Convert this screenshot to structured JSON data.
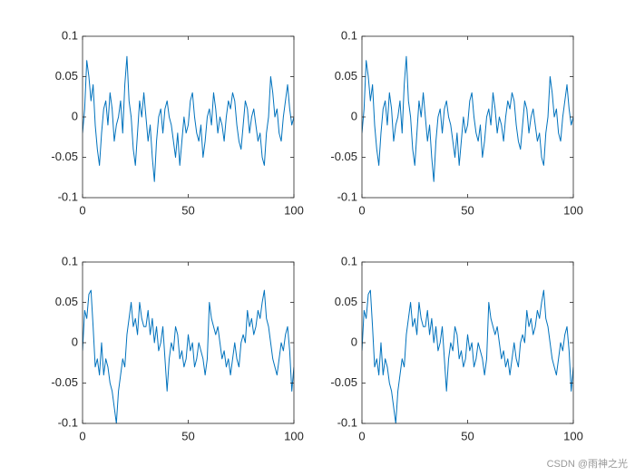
{
  "chart_data": [
    {
      "type": "line",
      "color": "#0072BD",
      "x": [
        0,
        1,
        2,
        3,
        4,
        5,
        6,
        7,
        8,
        9,
        10,
        11,
        12,
        13,
        14,
        15,
        16,
        17,
        18,
        19,
        20,
        21,
        22,
        23,
        24,
        25,
        26,
        27,
        28,
        29,
        30,
        31,
        32,
        33,
        34,
        35,
        36,
        37,
        38,
        39,
        40,
        41,
        42,
        43,
        44,
        45,
        46,
        47,
        48,
        49,
        50,
        51,
        52,
        53,
        54,
        55,
        56,
        57,
        58,
        59,
        60,
        61,
        62,
        63,
        64,
        65,
        66,
        67,
        68,
        69,
        70,
        71,
        72,
        73,
        74,
        75,
        76,
        77,
        78,
        79,
        80,
        81,
        82,
        83,
        84,
        85,
        86,
        87,
        88,
        89,
        90,
        91,
        92,
        93,
        94,
        95,
        96,
        97,
        98,
        99,
        100
      ],
      "values": [
        -0.02,
        0.01,
        0.07,
        0.05,
        0.02,
        0.04,
        -0.01,
        -0.04,
        -0.06,
        -0.02,
        0.01,
        0.02,
        -0.01,
        0.03,
        0.01,
        -0.03,
        -0.01,
        0.0,
        0.02,
        -0.02,
        0.04,
        0.075,
        0.02,
        0.0,
        -0.04,
        -0.06,
        -0.02,
        0.02,
        0.0,
        0.03,
        0.0,
        -0.03,
        -0.01,
        -0.05,
        -0.08,
        -0.03,
        0.0,
        0.01,
        -0.02,
        0.01,
        0.02,
        0.0,
        -0.01,
        -0.03,
        -0.05,
        -0.02,
        -0.06,
        -0.03,
        0.0,
        -0.02,
        -0.01,
        0.02,
        0.03,
        0.0,
        -0.02,
        -0.03,
        -0.01,
        -0.05,
        -0.03,
        0.0,
        0.01,
        -0.01,
        0.03,
        0.01,
        -0.02,
        0.0,
        -0.01,
        -0.03,
        0.0,
        0.02,
        0.01,
        0.03,
        0.02,
        -0.01,
        -0.03,
        -0.04,
        -0.01,
        0.02,
        0.01,
        -0.02,
        0.0,
        0.01,
        -0.01,
        -0.03,
        -0.02,
        -0.05,
        -0.06,
        -0.02,
        0.0,
        0.05,
        0.03,
        0.0,
        0.01,
        -0.02,
        -0.03,
        0.0,
        0.02,
        0.04,
        0.01,
        -0.01,
        0.0
      ],
      "xlim": [
        0,
        100
      ],
      "xticks": [
        0,
        50,
        100
      ],
      "ylim": [
        -0.1,
        0.1
      ],
      "yticks": [
        -0.1,
        -0.05,
        0,
        0.05,
        0.1
      ]
    },
    {
      "type": "line",
      "color": "#0072BD",
      "x": [
        0,
        1,
        2,
        3,
        4,
        5,
        6,
        7,
        8,
        9,
        10,
        11,
        12,
        13,
        14,
        15,
        16,
        17,
        18,
        19,
        20,
        21,
        22,
        23,
        24,
        25,
        26,
        27,
        28,
        29,
        30,
        31,
        32,
        33,
        34,
        35,
        36,
        37,
        38,
        39,
        40,
        41,
        42,
        43,
        44,
        45,
        46,
        47,
        48,
        49,
        50,
        51,
        52,
        53,
        54,
        55,
        56,
        57,
        58,
        59,
        60,
        61,
        62,
        63,
        64,
        65,
        66,
        67,
        68,
        69,
        70,
        71,
        72,
        73,
        74,
        75,
        76,
        77,
        78,
        79,
        80,
        81,
        82,
        83,
        84,
        85,
        86,
        87,
        88,
        89,
        90,
        91,
        92,
        93,
        94,
        95,
        96,
        97,
        98,
        99,
        100
      ],
      "values": [
        -0.02,
        0.01,
        0.07,
        0.05,
        0.02,
        0.04,
        -0.01,
        -0.04,
        -0.06,
        -0.02,
        0.01,
        0.02,
        -0.01,
        0.03,
        0.01,
        -0.03,
        -0.01,
        0.0,
        0.02,
        -0.02,
        0.04,
        0.075,
        0.02,
        0.0,
        -0.04,
        -0.06,
        -0.02,
        0.02,
        0.0,
        0.03,
        0.0,
        -0.03,
        -0.01,
        -0.05,
        -0.08,
        -0.03,
        0.0,
        0.01,
        -0.02,
        0.01,
        0.02,
        0.0,
        -0.01,
        -0.03,
        -0.05,
        -0.02,
        -0.06,
        -0.03,
        0.0,
        -0.02,
        -0.01,
        0.02,
        0.03,
        0.0,
        -0.02,
        -0.03,
        -0.01,
        -0.05,
        -0.03,
        0.0,
        0.01,
        -0.01,
        0.03,
        0.01,
        -0.02,
        0.0,
        -0.01,
        -0.03,
        0.0,
        0.02,
        0.01,
        0.03,
        0.02,
        -0.01,
        -0.03,
        -0.04,
        -0.01,
        0.02,
        0.01,
        -0.02,
        0.0,
        0.01,
        -0.01,
        -0.03,
        -0.02,
        -0.05,
        -0.06,
        -0.02,
        0.0,
        0.05,
        0.03,
        0.0,
        0.01,
        -0.02,
        -0.03,
        0.0,
        0.02,
        0.04,
        0.01,
        -0.01,
        0.0
      ],
      "xlim": [
        0,
        100
      ],
      "xticks": [
        0,
        50,
        100
      ],
      "ylim": [
        -0.1,
        0.1
      ],
      "yticks": [
        -0.1,
        -0.05,
        0,
        0.05,
        0.1
      ]
    },
    {
      "type": "line",
      "color": "#0072BD",
      "x": [
        0,
        1,
        2,
        3,
        4,
        5,
        6,
        7,
        8,
        9,
        10,
        11,
        12,
        13,
        14,
        15,
        16,
        17,
        18,
        19,
        20,
        21,
        22,
        23,
        24,
        25,
        26,
        27,
        28,
        29,
        30,
        31,
        32,
        33,
        34,
        35,
        36,
        37,
        38,
        39,
        40,
        41,
        42,
        43,
        44,
        45,
        46,
        47,
        48,
        49,
        50,
        51,
        52,
        53,
        54,
        55,
        56,
        57,
        58,
        59,
        60,
        61,
        62,
        63,
        64,
        65,
        66,
        67,
        68,
        69,
        70,
        71,
        72,
        73,
        74,
        75,
        76,
        77,
        78,
        79,
        80,
        81,
        82,
        83,
        84,
        85,
        86,
        87,
        88,
        89,
        90,
        91,
        92,
        93,
        94,
        95,
        96,
        97,
        98,
        99,
        100
      ],
      "values": [
        -0.01,
        0.04,
        0.03,
        0.06,
        0.065,
        0.02,
        -0.03,
        -0.02,
        -0.04,
        0.0,
        -0.04,
        -0.02,
        -0.03,
        -0.05,
        -0.06,
        -0.08,
        -0.1,
        -0.06,
        -0.04,
        -0.02,
        -0.03,
        0.01,
        0.03,
        0.05,
        0.02,
        0.03,
        0.01,
        0.05,
        0.03,
        0.02,
        0.02,
        0.04,
        0.01,
        0.03,
        0.0,
        0.02,
        -0.01,
        0.0,
        0.02,
        -0.02,
        -0.06,
        -0.02,
        0.0,
        -0.01,
        0.02,
        0.01,
        -0.02,
        -0.01,
        -0.03,
        -0.02,
        0.01,
        -0.01,
        0.0,
        -0.03,
        -0.02,
        0.0,
        -0.01,
        -0.02,
        -0.04,
        -0.02,
        0.05,
        0.03,
        0.02,
        0.01,
        0.02,
        0.0,
        -0.02,
        -0.01,
        -0.03,
        -0.02,
        -0.04,
        -0.02,
        0.0,
        -0.02,
        -0.03,
        0.0,
        0.01,
        0.0,
        0.04,
        0.02,
        0.03,
        0.01,
        0.02,
        0.04,
        0.03,
        0.05,
        0.065,
        0.03,
        0.02,
        0.0,
        -0.02,
        -0.03,
        -0.04,
        -0.02,
        0.0,
        -0.01,
        0.01,
        0.02,
        -0.01,
        -0.06,
        -0.03
      ],
      "xlim": [
        0,
        100
      ],
      "xticks": [
        0,
        50,
        100
      ],
      "ylim": [
        -0.1,
        0.1
      ],
      "yticks": [
        -0.1,
        -0.05,
        0,
        0.05,
        0.1
      ]
    },
    {
      "type": "line",
      "color": "#0072BD",
      "x": [
        0,
        1,
        2,
        3,
        4,
        5,
        6,
        7,
        8,
        9,
        10,
        11,
        12,
        13,
        14,
        15,
        16,
        17,
        18,
        19,
        20,
        21,
        22,
        23,
        24,
        25,
        26,
        27,
        28,
        29,
        30,
        31,
        32,
        33,
        34,
        35,
        36,
        37,
        38,
        39,
        40,
        41,
        42,
        43,
        44,
        45,
        46,
        47,
        48,
        49,
        50,
        51,
        52,
        53,
        54,
        55,
        56,
        57,
        58,
        59,
        60,
        61,
        62,
        63,
        64,
        65,
        66,
        67,
        68,
        69,
        70,
        71,
        72,
        73,
        74,
        75,
        76,
        77,
        78,
        79,
        80,
        81,
        82,
        83,
        84,
        85,
        86,
        87,
        88,
        89,
        90,
        91,
        92,
        93,
        94,
        95,
        96,
        97,
        98,
        99,
        100
      ],
      "values": [
        -0.01,
        0.04,
        0.03,
        0.06,
        0.065,
        0.02,
        -0.03,
        -0.02,
        -0.04,
        0.0,
        -0.04,
        -0.02,
        -0.03,
        -0.05,
        -0.06,
        -0.08,
        -0.1,
        -0.06,
        -0.04,
        -0.02,
        -0.03,
        0.01,
        0.03,
        0.05,
        0.02,
        0.03,
        0.01,
        0.05,
        0.03,
        0.02,
        0.02,
        0.04,
        0.01,
        0.03,
        0.0,
        0.02,
        -0.01,
        0.0,
        0.02,
        -0.02,
        -0.06,
        -0.02,
        0.0,
        -0.01,
        0.02,
        0.01,
        -0.02,
        -0.01,
        -0.03,
        -0.02,
        0.01,
        -0.01,
        0.0,
        -0.03,
        -0.02,
        0.0,
        -0.01,
        -0.02,
        -0.04,
        -0.02,
        0.05,
        0.03,
        0.02,
        0.01,
        0.02,
        0.0,
        -0.02,
        -0.01,
        -0.03,
        -0.02,
        -0.04,
        -0.02,
        0.0,
        -0.02,
        -0.03,
        0.0,
        0.01,
        0.0,
        0.04,
        0.02,
        0.03,
        0.01,
        0.02,
        0.04,
        0.03,
        0.05,
        0.065,
        0.03,
        0.02,
        0.0,
        -0.02,
        -0.03,
        -0.04,
        -0.02,
        0.0,
        -0.01,
        0.01,
        0.02,
        -0.01,
        -0.06,
        -0.03
      ],
      "xlim": [
        0,
        100
      ],
      "xticks": [
        0,
        50,
        100
      ],
      "ylim": [
        -0.1,
        0.1
      ],
      "yticks": [
        -0.1,
        -0.05,
        0,
        0.05,
        0.1
      ]
    }
  ],
  "watermark": "CSDN @雨神之光"
}
